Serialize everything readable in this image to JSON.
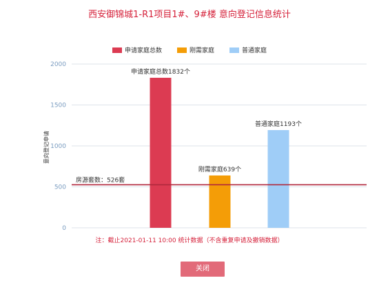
{
  "chart_data": {
    "type": "bar",
    "title": "西安御锦城1-R1项目1#、9#楼 意向登记信息统计",
    "ylabel": "意向登记申请",
    "ylim": [
      0,
      2000
    ],
    "yticks": [
      0,
      500,
      1000,
      1500,
      2000
    ],
    "grid": true,
    "legend_position": "top",
    "series": [
      {
        "name": "申请家庭总数",
        "value": 1832,
        "color": "#dc3b52",
        "label": "申请家庭总数1832个"
      },
      {
        "name": "刚需家庭",
        "value": 639,
        "color": "#f49d07",
        "label": "刚需家庭639个"
      },
      {
        "name": "普通家庭",
        "value": 1193,
        "color": "#9fcdf7",
        "label": "普通家庭1193个"
      }
    ],
    "reference_line": {
      "value": 526,
      "label": "房源套数：526套",
      "color": "#b0283c"
    },
    "note": "注：截止2021-01-11 10:00 统计数据（不含重复申请及撤销数据）"
  },
  "footer": {
    "close_label": "关闭"
  }
}
